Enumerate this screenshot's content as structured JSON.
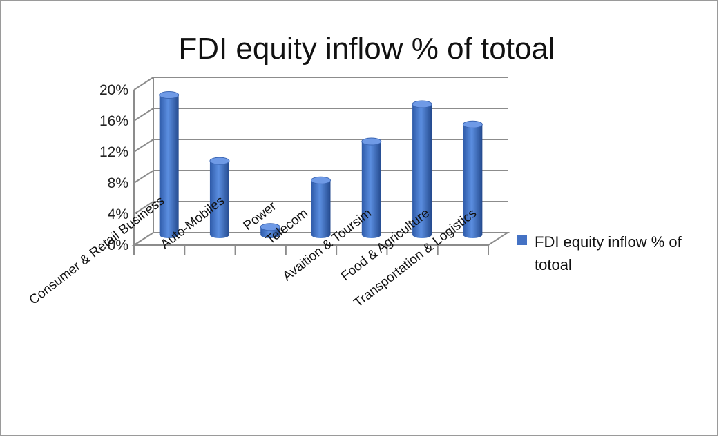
{
  "chart_data": {
    "type": "bar",
    "title": "FDI equity inflow % of totoal",
    "categories": [
      "Consumer & Retail Business",
      "Auto-Mobiles",
      "Power",
      "Telecom",
      "Avaition & Toursim",
      "Food & Agriculture",
      "Transportation & Logistics"
    ],
    "series": [
      {
        "name": "FDI equity inflow % of totoal",
        "values": [
          18,
          9.5,
          1,
          7,
          12,
          16.8,
          14.2
        ],
        "color": "#4472c4"
      }
    ],
    "ylim": [
      0,
      20
    ],
    "yticks": [
      "0%",
      "4%",
      "8%",
      "12%",
      "16%",
      "20%"
    ],
    "legend": {
      "position": "right",
      "lines": [
        "FDI equity inflow % of",
        "totoal"
      ]
    },
    "grid": true,
    "style": "3d-cylinder"
  }
}
